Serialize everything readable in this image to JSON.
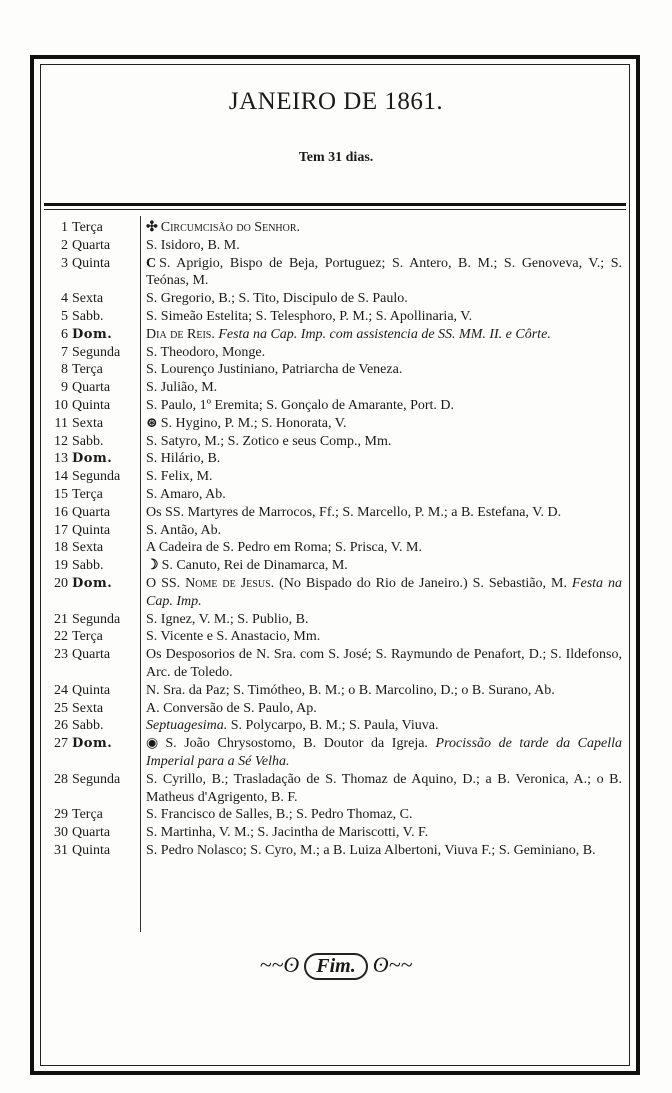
{
  "title": "JANEIRO DE 1861.",
  "subtitle": "Tem 31 dias.",
  "colors": {
    "ink": "#1a1a1a",
    "paper": "#fdfdfb"
  },
  "entries": [
    {
      "n": "1",
      "d": "Terça",
      "sym": "✣",
      "seg": [
        {
          "t": "Circumcisão do Senhor.",
          "sc": true
        }
      ]
    },
    {
      "n": "2",
      "d": "Quarta",
      "seg": [
        {
          "t": "S. Isidoro, B. M."
        }
      ]
    },
    {
      "n": "3",
      "d": "Quinta",
      "sym": "C",
      "seg": [
        {
          "t": "S. Aprigio, Bispo de Beja, Portuguez; S. Antero, B. M.; S. Genoveva, V.; S. Teónas, M."
        }
      ]
    },
    {
      "n": "4",
      "d": "Sexta",
      "seg": [
        {
          "t": "S. Gregorio, B.; S. Tito, Discipulo de S. Paulo."
        }
      ]
    },
    {
      "n": "5",
      "d": "Sabb.",
      "seg": [
        {
          "t": "S. Simeão Estelita; S. Telesphoro, P. M.; S. Apollinaria, V."
        }
      ]
    },
    {
      "n": "6",
      "d": "Dom.",
      "dom": true,
      "seg": [
        {
          "t": "Dia de Reis. ",
          "sc": true
        },
        {
          "t": "Festa na Cap. Imp. com assistencia de SS. MM. II. e Côrte.",
          "i": true
        }
      ]
    },
    {
      "n": "7",
      "d": "Segunda",
      "seg": [
        {
          "t": "S. Theodoro, Monge."
        }
      ]
    },
    {
      "n": "8",
      "d": "Terça",
      "seg": [
        {
          "t": "S. Lourenço Justiniano, Patriarcha de Veneza."
        }
      ]
    },
    {
      "n": "9",
      "d": "Quarta",
      "seg": [
        {
          "t": "S. Julião, M."
        }
      ]
    },
    {
      "n": "10",
      "d": "Quinta",
      "seg": [
        {
          "t": "S. Paulo, 1º Eremita; S. Gonçalo de Amarante, Port. D."
        }
      ]
    },
    {
      "n": "11",
      "d": "Sexta",
      "sym": "⊛",
      "seg": [
        {
          "t": "S. Hygino, P. M.; S. Honorata, V."
        }
      ]
    },
    {
      "n": "12",
      "d": "Sabb.",
      "seg": [
        {
          "t": "S. Satyro, M.; S. Zotico e seus Comp., Mm."
        }
      ]
    },
    {
      "n": "13",
      "d": "Dom.",
      "dom": true,
      "seg": [
        {
          "t": "S. Hilário, B."
        }
      ]
    },
    {
      "n": "14",
      "d": "Segunda",
      "seg": [
        {
          "t": "S. Felix, M."
        }
      ]
    },
    {
      "n": "15",
      "d": "Terça",
      "seg": [
        {
          "t": "S. Amaro, Ab."
        }
      ]
    },
    {
      "n": "16",
      "d": "Quarta",
      "seg": [
        {
          "t": "Os SS. Martyres de Marrocos, Ff.; S. Marcello, P. M.; a B. Estefana, V. D."
        }
      ]
    },
    {
      "n": "17",
      "d": "Quinta",
      "seg": [
        {
          "t": "S. Antão, Ab."
        }
      ]
    },
    {
      "n": "18",
      "d": "Sexta",
      "seg": [
        {
          "t": "A Cadeira de S. Pedro em Roma; S. Prisca, V. M."
        }
      ]
    },
    {
      "n": "19",
      "d": "Sabb.",
      "sym": "☽",
      "seg": [
        {
          "t": "S. Canuto, Rei de Dinamarca, M."
        }
      ]
    },
    {
      "n": "20",
      "d": "Dom.",
      "dom": true,
      "seg": [
        {
          "t": "O SS. Nome de Jesus. ",
          "sc": true
        },
        {
          "t": "(No Bispado do Rio de Janeiro.) S. Sebastião, M. "
        },
        {
          "t": "Festa na Cap. Imp.",
          "i": true
        }
      ]
    },
    {
      "n": "21",
      "d": "Segunda",
      "seg": [
        {
          "t": "S. Ignez, V. M.; S. Publio, B."
        }
      ]
    },
    {
      "n": "22",
      "d": "Terça",
      "seg": [
        {
          "t": "S. Vicente e S. Anastacio, Mm."
        }
      ]
    },
    {
      "n": "23",
      "d": "Quarta",
      "seg": [
        {
          "t": "Os Desposorios de N. Sra. com S. José; S. Raymundo de Penafort, D.; S. Ildefonso, Arc. de Toledo."
        }
      ]
    },
    {
      "n": "24",
      "d": "Quinta",
      "seg": [
        {
          "t": "N. Sra. da Paz; S. Timótheo, B. M.; o B. Marcolino, D.; o B. Surano, Ab."
        }
      ]
    },
    {
      "n": "25",
      "d": "Sexta",
      "seg": [
        {
          "t": "A. Conversão de S. Paulo, Ap."
        }
      ]
    },
    {
      "n": "26",
      "d": "Sabb.",
      "seg": [
        {
          "t": "Septuagesima. ",
          "i": true
        },
        {
          "t": "S. Polycarpo, B. M.; S. Paula, Viuva."
        }
      ]
    },
    {
      "n": "27",
      "d": "Dom.",
      "dom": true,
      "sym": "◉",
      "seg": [
        {
          "t": "S. João Chrysostomo, B. Doutor da Igreja. "
        },
        {
          "t": "Procissão de tarde da Capella Imperial para a Sé Velha.",
          "i": true
        }
      ]
    },
    {
      "n": "28",
      "d": "Segunda",
      "seg": [
        {
          "t": "S. Cyrillo, B.; Trasladação de S. Thomaz de Aquino, D.; a B. Veronica, A.; o B. Matheus d'Agrigento, B. F."
        }
      ]
    },
    {
      "n": "29",
      "d": "Terça",
      "seg": [
        {
          "t": "S. Francisco de Salles, B.; S. Pedro Thomaz, C."
        }
      ]
    },
    {
      "n": "30",
      "d": "Quarta",
      "seg": [
        {
          "t": "S. Martinha, V. M.; S. Jacintha de Mariscotti, V. F."
        }
      ]
    },
    {
      "n": "31",
      "d": "Quinta",
      "seg": [
        {
          "t": "S. Pedro Nolasco; S. Cyro, M.; a B. Luiza Albertoni, Viuva F.; S. Geminiano, B."
        }
      ]
    }
  ],
  "ending": "Fim."
}
